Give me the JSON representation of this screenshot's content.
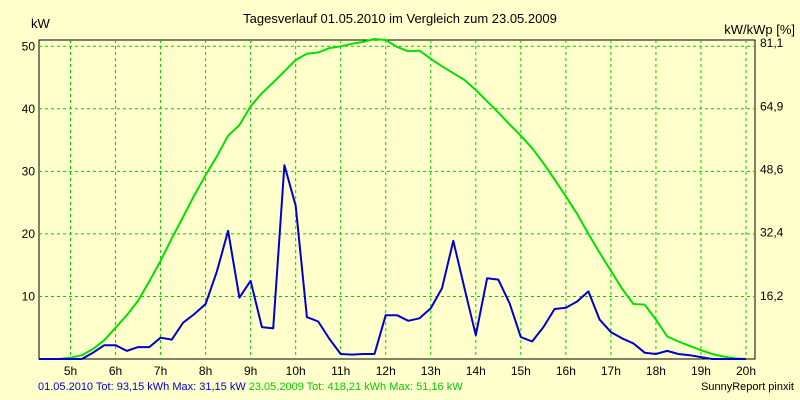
{
  "colors": {
    "background": "#ffffcc",
    "grid": "#00cc00",
    "series_2010": "#0000cc",
    "series_2009": "#00e000"
  },
  "footer": {
    "legend_2010": "01.05.2010 Tot: 93,15 kWh Max: 31,15 kW",
    "legend_2009": "23.05.2009 Tot: 418,21 kWh Max: 51,16 kW",
    "credit": "SunnyReport pinxit"
  },
  "chart_data": {
    "type": "line",
    "title": "Tagesverlauf 01.05.2010 im Vergleich zum 23.05.2009",
    "ylabel_left": "kW",
    "ylabel_right": "kW/kWp [%]",
    "xlim": [
      4.3,
      20.2
    ],
    "ylim": [
      0,
      51
    ],
    "x_ticks": [
      5,
      6,
      7,
      8,
      9,
      10,
      11,
      12,
      13,
      14,
      15,
      16,
      17,
      18,
      19,
      20
    ],
    "x_tick_labels": [
      "5h",
      "6h",
      "7h",
      "8h",
      "9h",
      "10h",
      "11h",
      "12h",
      "13h",
      "14h",
      "15h",
      "16h",
      "17h",
      "18h",
      "19h",
      "20h"
    ],
    "y_ticks": [
      10,
      20,
      30,
      40,
      50
    ],
    "y_tick_labels": [
      "10",
      "20",
      "30",
      "40",
      "50"
    ],
    "y2_ticks": [
      10.1,
      20.2,
      30.3,
      40.4,
      50.5
    ],
    "y2_tick_labels": [
      "16,2",
      "32,4",
      "48,6",
      "64,9",
      "81,1"
    ],
    "grid": true,
    "series": [
      {
        "name": "01.05.2010",
        "color": "#0000cc",
        "x": [
          4.3,
          5.25,
          5.5,
          5.75,
          6.0,
          6.25,
          6.5,
          6.75,
          7.0,
          7.25,
          7.5,
          7.75,
          8.0,
          8.25,
          8.5,
          8.75,
          9.0,
          9.25,
          9.5,
          9.75,
          10.0,
          10.25,
          10.5,
          10.75,
          11.0,
          11.25,
          11.5,
          11.75,
          12.0,
          12.25,
          12.5,
          12.75,
          13.0,
          13.25,
          13.5,
          13.75,
          14.0,
          14.25,
          14.5,
          14.75,
          15.0,
          15.25,
          15.5,
          15.75,
          16.0,
          16.25,
          16.5,
          16.75,
          17.0,
          17.25,
          17.5,
          17.75,
          18.0,
          18.25,
          18.5,
          18.75,
          19.0,
          19.25,
          19.5,
          19.75,
          20.0
        ],
        "y": [
          0,
          0,
          1.0,
          2.2,
          2.2,
          1.3,
          1.9,
          1.9,
          3.4,
          3.1,
          5.8,
          7.2,
          8.8,
          14.0,
          20.5,
          9.8,
          12.5,
          5.1,
          4.9,
          31.0,
          24.5,
          6.7,
          6.0,
          3.2,
          0.8,
          0.7,
          0.8,
          0.8,
          7.0,
          7.0,
          6.1,
          6.5,
          8.1,
          11.3,
          18.9,
          11.3,
          3.8,
          12.9,
          12.7,
          8.9,
          3.5,
          2.8,
          5.1,
          8.0,
          8.2,
          9.2,
          10.8,
          6.3,
          4.3,
          3.3,
          2.5,
          1.0,
          0.8,
          1.3,
          0.8,
          0.6,
          0.3,
          0,
          0,
          0,
          0
        ]
      },
      {
        "name": "23.05.2009",
        "color": "#00e000",
        "x": [
          4.3,
          4.75,
          5.0,
          5.25,
          5.5,
          5.75,
          6.0,
          6.25,
          6.5,
          6.75,
          7.0,
          7.25,
          7.5,
          7.75,
          8.0,
          8.25,
          8.5,
          8.75,
          9.0,
          9.25,
          9.5,
          9.75,
          10.0,
          10.25,
          10.5,
          10.75,
          11.0,
          11.25,
          11.5,
          11.75,
          12.0,
          12.25,
          12.5,
          12.75,
          13.0,
          13.25,
          13.5,
          13.75,
          14.0,
          14.25,
          14.5,
          14.75,
          15.0,
          15.25,
          15.5,
          15.75,
          16.0,
          16.25,
          16.5,
          16.75,
          17.0,
          17.25,
          17.5,
          17.75,
          18.0,
          18.25,
          18.5,
          18.75,
          19.0,
          19.25,
          19.5,
          19.75,
          20.0
        ],
        "y": [
          0,
          0,
          0.2,
          0.6,
          1.6,
          3.0,
          5.0,
          7.0,
          9.3,
          12.4,
          15.7,
          19.3,
          22.7,
          26.2,
          29.4,
          32.4,
          35.7,
          37.4,
          40.4,
          42.5,
          44.2,
          46.0,
          47.8,
          48.8,
          49.0,
          49.7,
          50.0,
          50.4,
          50.7,
          51.16,
          51.0,
          49.9,
          49.2,
          49.3,
          48.0,
          46.8,
          45.7,
          44.6,
          43.0,
          41.2,
          39.4,
          37.5,
          35.7,
          33.7,
          31.3,
          28.7,
          26.0,
          23.2,
          20.0,
          17.0,
          14.1,
          11.2,
          8.8,
          8.7,
          6.3,
          3.6,
          2.8,
          2.1,
          1.4,
          0.8,
          0.4,
          0.1,
          0
        ]
      }
    ]
  }
}
